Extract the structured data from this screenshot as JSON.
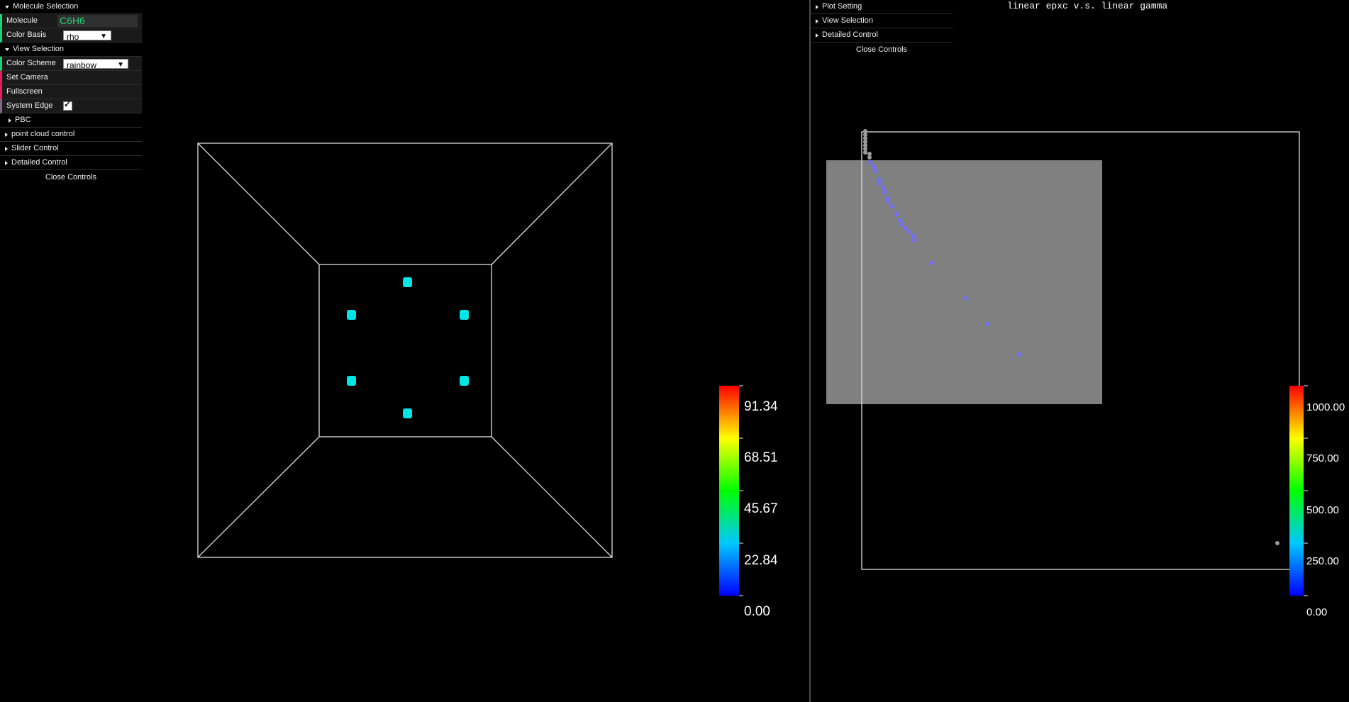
{
  "left_gui": {
    "molecule_folder": "Molecule Selection",
    "molecule_label": "Molecule",
    "molecule_value": "C6H6",
    "color_basis_label": "Color Basis",
    "color_basis_value": "rho",
    "view_folder": "View Selection",
    "color_scheme_label": "Color Scheme",
    "color_scheme_value": "rainbow",
    "set_camera": "Set Camera",
    "fullscreen": "Fullscreen",
    "system_edge": "System Edge",
    "pbc_folder": "PBC",
    "point_cloud_folder": "point cloud control",
    "slider_folder": "Slider Control",
    "detailed_folder": "Detailed Control",
    "close": "Close Controls"
  },
  "right_gui": {
    "plot_setting": "Plot Setting",
    "view_selection": "View Selection",
    "detailed_control": "Detailed Control",
    "close": "Close Controls"
  },
  "plot_title": "linear epxc v.s. linear gamma",
  "colorbar_left": {
    "labels": [
      "91.34",
      "68.51",
      "45.67",
      "22.84",
      "0.00"
    ]
  },
  "colorbar_right": {
    "labels": [
      "1000.00",
      "750.00",
      "500.00",
      "250.00",
      "0.00"
    ]
  },
  "colors": {
    "atom": "#00e5e5",
    "point_blue": "#6f6fff",
    "point_gray": "#9a9a9a",
    "select_box": "#808080"
  }
}
